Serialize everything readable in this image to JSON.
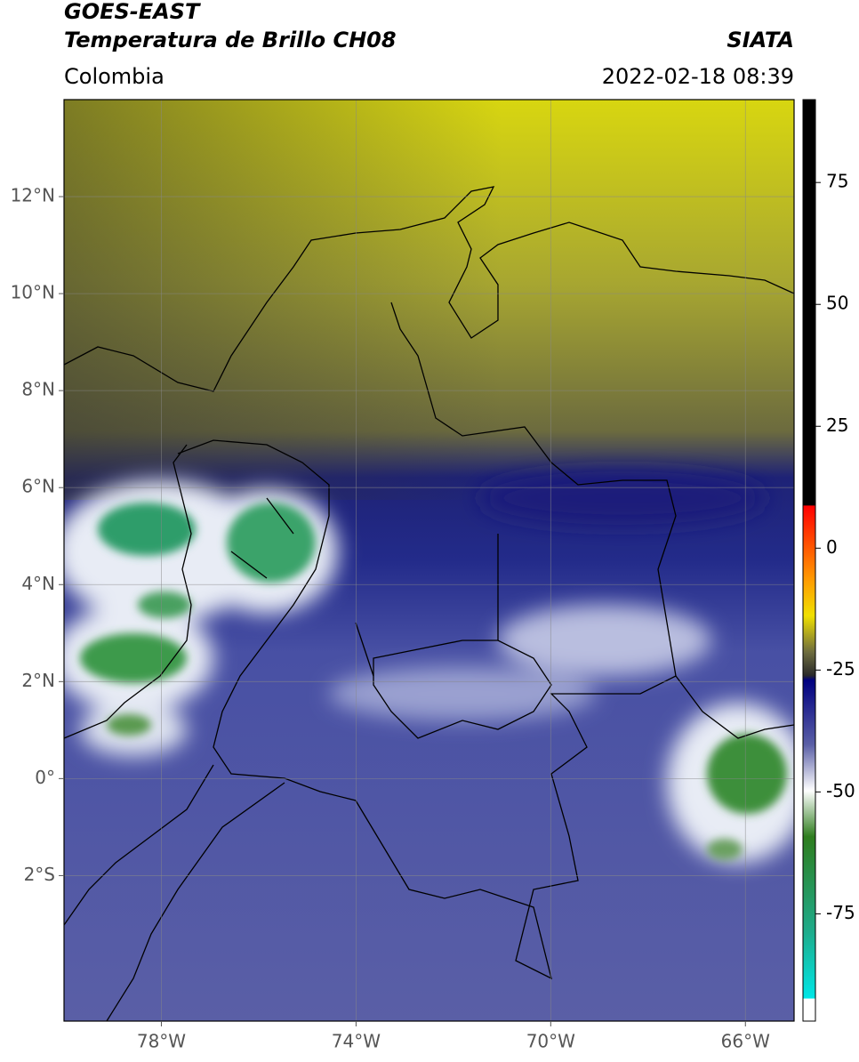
{
  "header": {
    "title": "GOES-EAST",
    "subtitle": "Temperatura de Brillo CH08",
    "source": "SIATA",
    "region": "Colombia",
    "datetime": "2022-02-18 08:39"
  },
  "map": {
    "xlim": [
      -80,
      -65
    ],
    "ylim": [
      -5,
      14
    ],
    "xticks": [
      {
        "value": -78,
        "label": "78°W"
      },
      {
        "value": -74,
        "label": "74°W"
      },
      {
        "value": -70,
        "label": "70°W"
      },
      {
        "value": -66,
        "label": "66°W"
      }
    ],
    "yticks": [
      {
        "value": 12,
        "label": "12°N"
      },
      {
        "value": 10,
        "label": "10°N"
      },
      {
        "value": 8,
        "label": "8°N"
      },
      {
        "value": 6,
        "label": "6°N"
      },
      {
        "value": 4,
        "label": "4°N"
      },
      {
        "value": 2,
        "label": "2°N"
      },
      {
        "value": 0,
        "label": "0°"
      },
      {
        "value": -2,
        "label": "2°S"
      }
    ]
  },
  "colorbar": {
    "lim": [
      -97,
      92
    ],
    "ticks": [
      75,
      50,
      25,
      0,
      -25,
      -50,
      -75
    ]
  }
}
